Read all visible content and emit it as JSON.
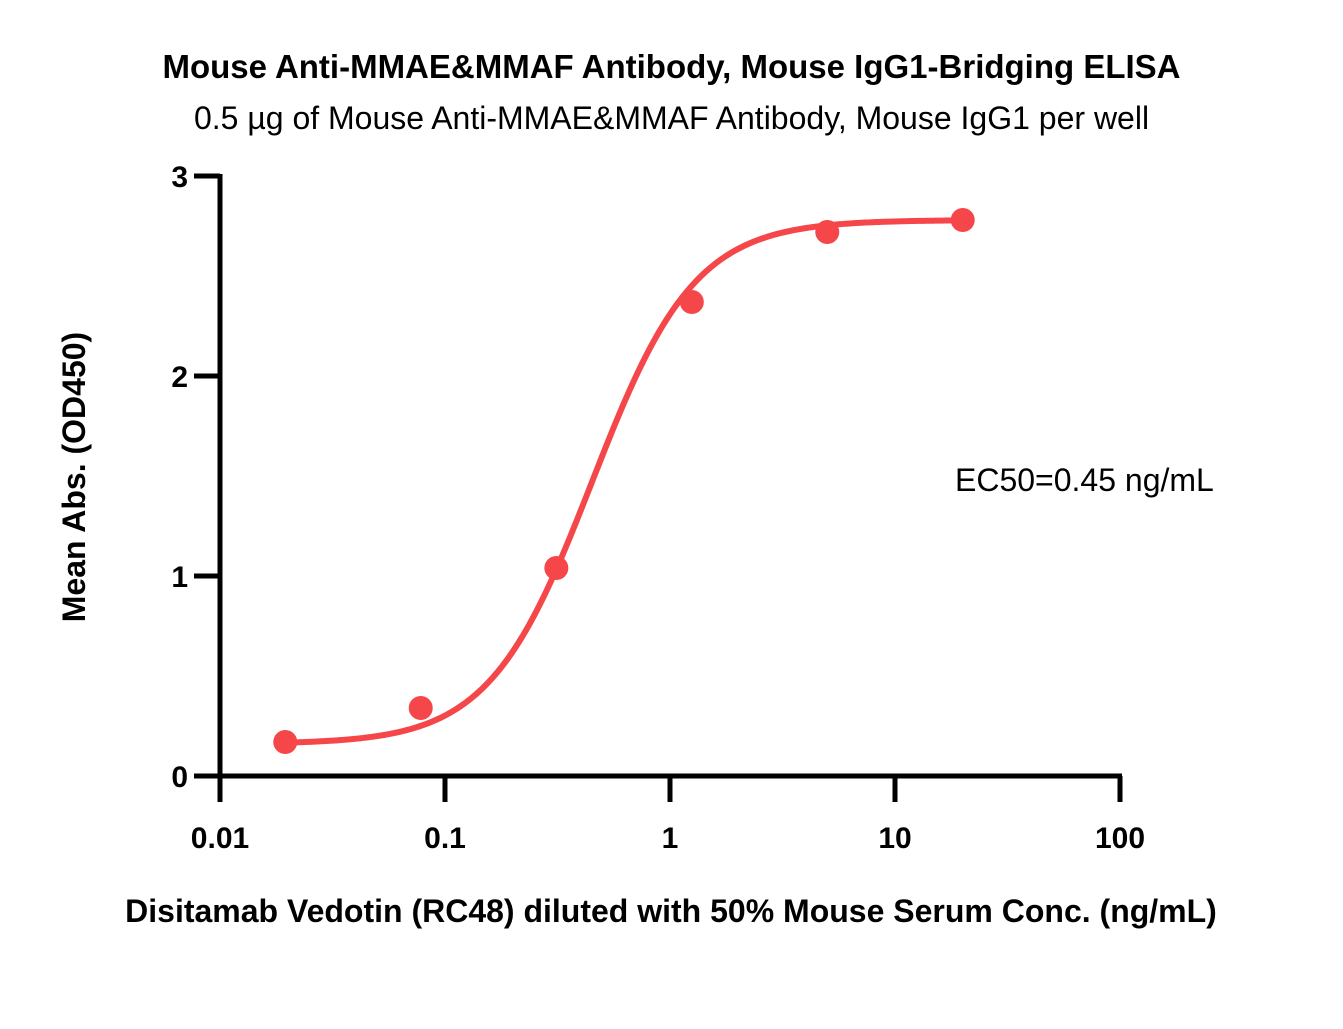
{
  "chart_data": {
    "type": "scatter",
    "title": "Mouse Anti-MMAE&MMAF Antibody, Mouse IgG1-Bridging ELISA",
    "subtitle": "0.5 µg of Mouse Anti-MMAE&MMAF Antibody, Mouse IgG1 per well",
    "xlabel": "Disitamab Vedotin (RC48) diluted with 50% Mouse Serum Conc. (ng/mL)",
    "ylabel": "Mean Abs. (OD450)",
    "xscale": "log",
    "xlim": [
      0.01,
      100
    ],
    "ylim": [
      0,
      3
    ],
    "xticks": [
      "0.01",
      "0.1",
      "1",
      "10",
      "100"
    ],
    "xtick_values": [
      0.01,
      0.1,
      1,
      10,
      100
    ],
    "yticks": [
      "0",
      "1",
      "2",
      "3"
    ],
    "ytick_values": [
      0,
      1,
      2,
      3
    ],
    "series": [
      {
        "name": "Disitamab Vedotin (RC48)",
        "color": "#f5474a",
        "x": [
          0.0195,
          0.078,
          0.3125,
          1.25,
          5,
          20
        ],
        "y": [
          0.17,
          0.34,
          1.04,
          2.37,
          2.72,
          2.78
        ],
        "fit": {
          "model": "4PL",
          "bottom": 0.16,
          "top": 2.78,
          "ec50": 0.45,
          "hill": 1.9
        }
      }
    ],
    "annotations": [
      {
        "text": "EC50=0.45 ng/mL",
        "position": "right-middle"
      }
    ],
    "grid": false,
    "legend": "none"
  }
}
